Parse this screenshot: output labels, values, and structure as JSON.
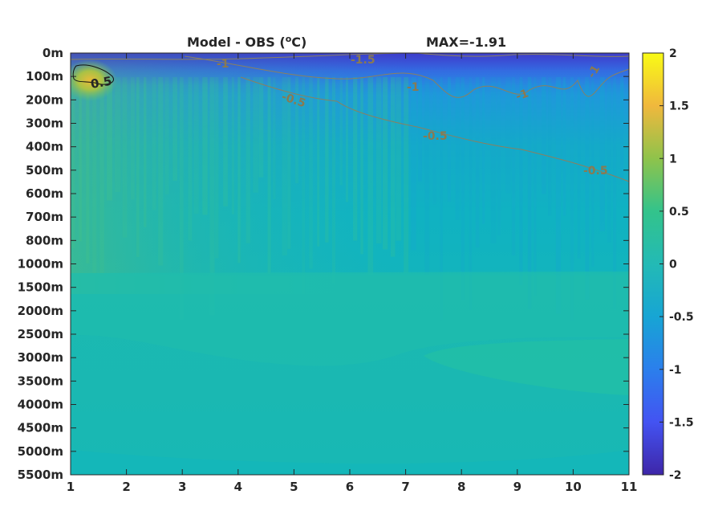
{
  "chart_data": {
    "type": "heatmap",
    "title_left": "Model - OBS (",
    "title_unit": "o",
    "title_unit_rest": "C)",
    "title_right": "MAX=-1.91",
    "x_ticks": [
      "1",
      "2",
      "3",
      "4",
      "5",
      "6",
      "7",
      "8",
      "9",
      "10",
      "11"
    ],
    "xlim": [
      1,
      11
    ],
    "y_ticks": [
      "0m",
      "100m",
      "200m",
      "300m",
      "400m",
      "500m",
      "600m",
      "700m",
      "800m",
      "1000m",
      "1500m",
      "2000m",
      "2500m",
      "3000m",
      "3500m",
      "4000m",
      "4500m",
      "5000m",
      "5500m"
    ],
    "colorbar": {
      "ticks": [
        "2",
        "1.5",
        "1",
        "0.5",
        "0",
        "-0.5",
        "-1",
        "-1.5",
        "-2"
      ],
      "range": [
        -2,
        2
      ],
      "colors": [
        "#3e26a8",
        "#4353f2",
        "#2b7fec",
        "#17a5d4",
        "#23bab5",
        "#33c38b",
        "#8fc34b",
        "#f0b83d",
        "#f9fb15"
      ]
    },
    "contour_labels": [
      "0.5",
      "-1",
      "-1.5",
      "-0.5",
      "-1",
      "-1",
      "-1",
      "-0.5",
      "-0.5"
    ],
    "colors": {
      "warm_patch": "#8fc34b",
      "surface_cool": "#4353f2",
      "deep_band": "#23bab5"
    }
  }
}
